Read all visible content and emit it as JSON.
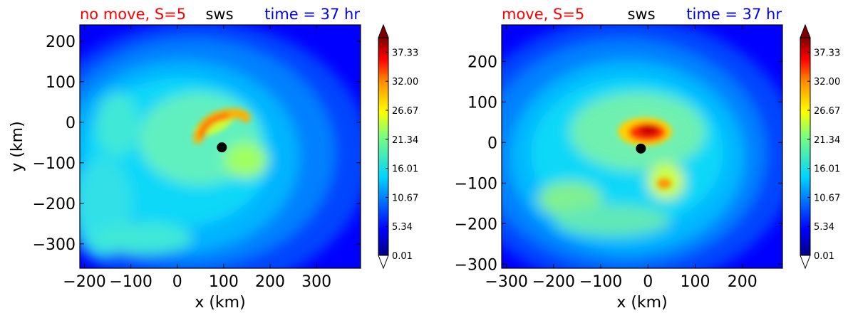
{
  "chart_data": [
    {
      "type": "heatmap",
      "title_left": "no move, S=5",
      "title_center": "sws",
      "title_right": "time = 37 hr",
      "title_left_color": "#ff0000",
      "title_center_color": "#000000",
      "title_right_color": "#0000ff",
      "xlabel": "x (km)",
      "ylabel": "y (km)",
      "xlim": [
        -210,
        395
      ],
      "ylim": [
        -360,
        240
      ],
      "xticks": [
        -200,
        -100,
        0,
        100,
        200,
        300
      ],
      "yticks": [
        200,
        100,
        0,
        -100,
        -200,
        -300
      ],
      "center_marker": {
        "x": 96,
        "y": -62
      },
      "features": [
        {
          "kind": "eye-arc",
          "x": 100,
          "y": 0,
          "value": 31
        },
        {
          "kind": "band",
          "x": -40,
          "y": -120,
          "value": 17
        },
        {
          "kind": "band",
          "x": -150,
          "y": -60,
          "value": 16
        },
        {
          "kind": "band",
          "x": 0,
          "y": -300,
          "value": 15
        }
      ],
      "colorbar": {
        "min": 0.01,
        "max": 40,
        "ticks": [
          "37.33",
          "32.00",
          "26.67",
          "21.34",
          "16.01",
          "10.67",
          "5.34",
          "0.01"
        ],
        "extend": "both"
      }
    },
    {
      "type": "heatmap",
      "title_left": "move, S=5",
      "title_center": "sws",
      "title_right": "time = 37 hr",
      "title_left_color": "#ff0000",
      "title_center_color": "#000000",
      "title_right_color": "#0000ff",
      "xlabel": "x (km)",
      "ylabel": "",
      "xlim": [
        -310,
        285
      ],
      "ylim": [
        -310,
        290
      ],
      "xticks": [
        -300,
        -200,
        -100,
        0,
        100,
        200
      ],
      "yticks": [
        200,
        100,
        0,
        -100,
        -200,
        -300
      ],
      "center_marker": {
        "x": -15,
        "y": -15
      },
      "features": [
        {
          "kind": "eye-core",
          "x": 0,
          "y": 20,
          "value": 37
        },
        {
          "kind": "band",
          "x": 30,
          "y": -100,
          "value": 30
        },
        {
          "kind": "band",
          "x": -180,
          "y": -150,
          "value": 23
        },
        {
          "kind": "band",
          "x": -50,
          "y": -200,
          "value": 20
        }
      ],
      "colorbar": {
        "min": 0.01,
        "max": 40,
        "ticks": [
          "37.33",
          "32.00",
          "26.67",
          "21.34",
          "16.01",
          "10.67",
          "5.34",
          "0.01"
        ],
        "extend": "both"
      }
    }
  ]
}
